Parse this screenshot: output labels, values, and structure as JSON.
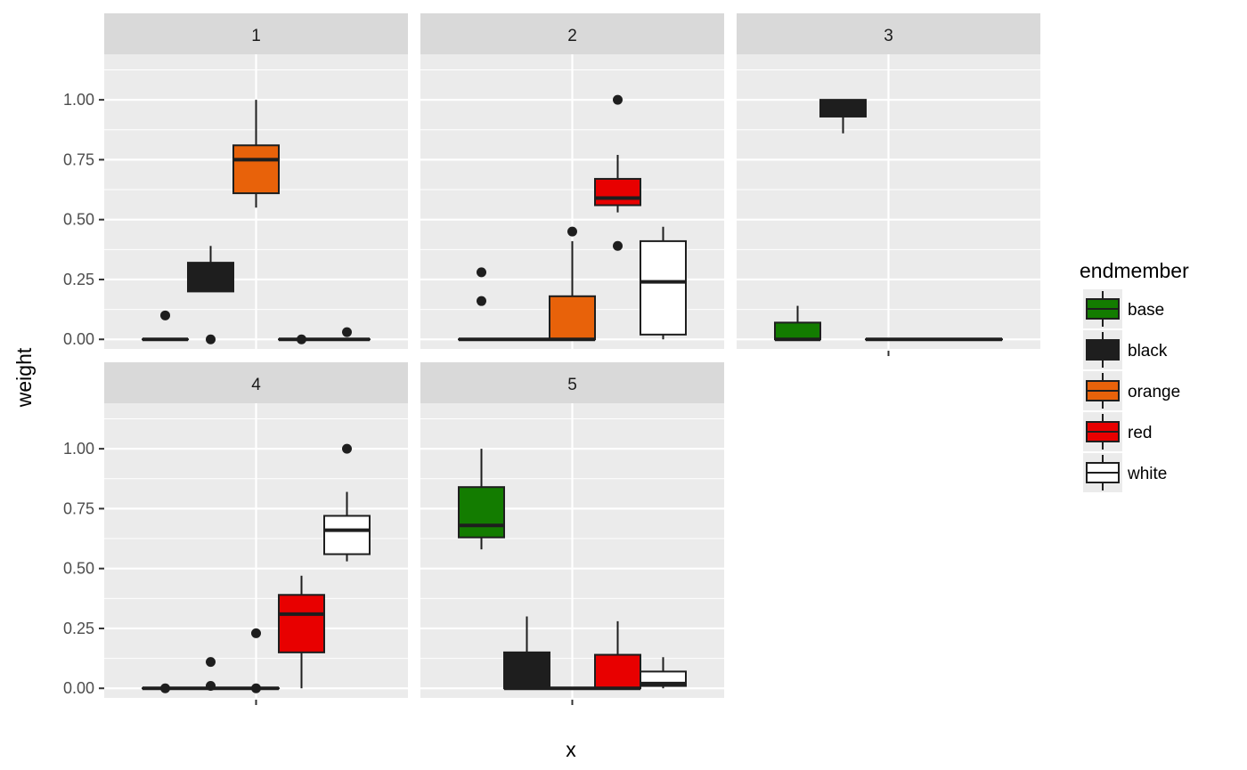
{
  "chart_data": {
    "type": "boxplot",
    "facet_type": "wrap",
    "ylabel": "weight",
    "xlabel": "x",
    "ylim": [
      -0.04,
      1.19
    ],
    "yticks": [
      0.0,
      0.25,
      0.5,
      0.75,
      1.0
    ],
    "ytick_labels": [
      "0.00",
      "0.25",
      "0.50",
      "0.75",
      "1.00"
    ],
    "grid": true,
    "legend": {
      "title": "endmember",
      "position": "right",
      "items": [
        {
          "name": "base",
          "color": "#137C00"
        },
        {
          "name": "black",
          "color": "#1E1E1E"
        },
        {
          "name": "orange",
          "color": "#E8620A"
        },
        {
          "name": "red",
          "color": "#E80000"
        },
        {
          "name": "white",
          "color": "#FFFFFF"
        }
      ]
    },
    "panels": [
      {
        "label": "1",
        "boxes": [
          {
            "group": "base",
            "q1": 0.0,
            "median": 0.0,
            "q3": 0.0,
            "whisker_low": 0.0,
            "whisker_high": 0.0,
            "outliers": [
              0.1
            ]
          },
          {
            "group": "black",
            "q1": 0.2,
            "median": 0.25,
            "q3": 0.32,
            "whisker_low": 0.2,
            "whisker_high": 0.39,
            "outliers": [
              0.0
            ]
          },
          {
            "group": "orange",
            "q1": 0.61,
            "median": 0.75,
            "q3": 0.81,
            "whisker_low": 0.55,
            "whisker_high": 1.0,
            "outliers": []
          },
          {
            "group": "red",
            "q1": 0.0,
            "median": 0.0,
            "q3": 0.0,
            "whisker_low": 0.0,
            "whisker_high": 0.0,
            "outliers": [
              0.0
            ]
          },
          {
            "group": "white",
            "q1": 0.0,
            "median": 0.0,
            "q3": 0.0,
            "whisker_low": 0.0,
            "whisker_high": 0.0,
            "outliers": [
              0.03
            ]
          }
        ]
      },
      {
        "label": "2",
        "boxes": [
          {
            "group": "base",
            "q1": 0.0,
            "median": 0.0,
            "q3": 0.0,
            "whisker_low": 0.0,
            "whisker_high": 0.0,
            "outliers": [
              0.28,
              0.16
            ]
          },
          {
            "group": "black",
            "q1": 0.0,
            "median": 0.0,
            "q3": 0.0,
            "whisker_low": 0.0,
            "whisker_high": 0.0,
            "outliers": []
          },
          {
            "group": "orange",
            "q1": 0.0,
            "median": 0.0,
            "q3": 0.18,
            "whisker_low": 0.0,
            "whisker_high": 0.41,
            "outliers": [
              0.45
            ]
          },
          {
            "group": "red",
            "q1": 0.56,
            "median": 0.59,
            "q3": 0.67,
            "whisker_low": 0.53,
            "whisker_high": 0.77,
            "outliers": [
              1.0,
              0.39
            ]
          },
          {
            "group": "white",
            "q1": 0.02,
            "median": 0.24,
            "q3": 0.41,
            "whisker_low": 0.0,
            "whisker_high": 0.47,
            "outliers": []
          }
        ]
      },
      {
        "label": "3",
        "boxes": [
          {
            "group": "base",
            "q1": 0.0,
            "median": 0.0,
            "q3": 0.07,
            "whisker_low": 0.0,
            "whisker_high": 0.14,
            "outliers": []
          },
          {
            "group": "black",
            "q1": 0.93,
            "median": 0.99,
            "q3": 1.0,
            "whisker_low": 0.86,
            "whisker_high": 1.0,
            "outliers": []
          },
          {
            "group": "orange",
            "q1": 0.0,
            "median": 0.0,
            "q3": 0.0,
            "whisker_low": 0.0,
            "whisker_high": 0.0,
            "outliers": []
          },
          {
            "group": "red",
            "q1": 0.0,
            "median": 0.0,
            "q3": 0.0,
            "whisker_low": 0.0,
            "whisker_high": 0.0,
            "outliers": []
          },
          {
            "group": "white",
            "q1": 0.0,
            "median": 0.0,
            "q3": 0.0,
            "whisker_low": 0.0,
            "whisker_high": 0.0,
            "outliers": []
          }
        ]
      },
      {
        "label": "4",
        "boxes": [
          {
            "group": "base",
            "q1": 0.0,
            "median": 0.0,
            "q3": 0.0,
            "whisker_low": 0.0,
            "whisker_high": 0.0,
            "outliers": [
              0.0
            ]
          },
          {
            "group": "black",
            "q1": 0.0,
            "median": 0.0,
            "q3": 0.0,
            "whisker_low": 0.0,
            "whisker_high": 0.0,
            "outliers": [
              0.11,
              0.01
            ]
          },
          {
            "group": "orange",
            "q1": 0.0,
            "median": 0.0,
            "q3": 0.0,
            "whisker_low": 0.0,
            "whisker_high": 0.0,
            "outliers": [
              0.23,
              0.0
            ]
          },
          {
            "group": "red",
            "q1": 0.15,
            "median": 0.31,
            "q3": 0.39,
            "whisker_low": 0.0,
            "whisker_high": 0.47,
            "outliers": []
          },
          {
            "group": "white",
            "q1": 0.56,
            "median": 0.66,
            "q3": 0.72,
            "whisker_low": 0.53,
            "whisker_high": 0.82,
            "outliers": [
              1.0
            ]
          }
        ]
      },
      {
        "label": "5",
        "boxes": [
          {
            "group": "base",
            "q1": 0.63,
            "median": 0.68,
            "q3": 0.84,
            "whisker_low": 0.58,
            "whisker_high": 1.0,
            "outliers": []
          },
          {
            "group": "black",
            "q1": 0.0,
            "median": 0.0,
            "q3": 0.15,
            "whisker_low": 0.0,
            "whisker_high": 0.3,
            "outliers": []
          },
          {
            "group": "orange",
            "q1": 0.0,
            "median": 0.0,
            "q3": 0.0,
            "whisker_low": 0.0,
            "whisker_high": 0.0,
            "outliers": []
          },
          {
            "group": "red",
            "q1": 0.0,
            "median": 0.0,
            "q3": 0.14,
            "whisker_low": 0.0,
            "whisker_high": 0.28,
            "outliers": []
          },
          {
            "group": "white",
            "q1": 0.01,
            "median": 0.02,
            "q3": 0.07,
            "whisker_low": 0.0,
            "whisker_high": 0.13,
            "outliers": []
          }
        ]
      }
    ]
  }
}
